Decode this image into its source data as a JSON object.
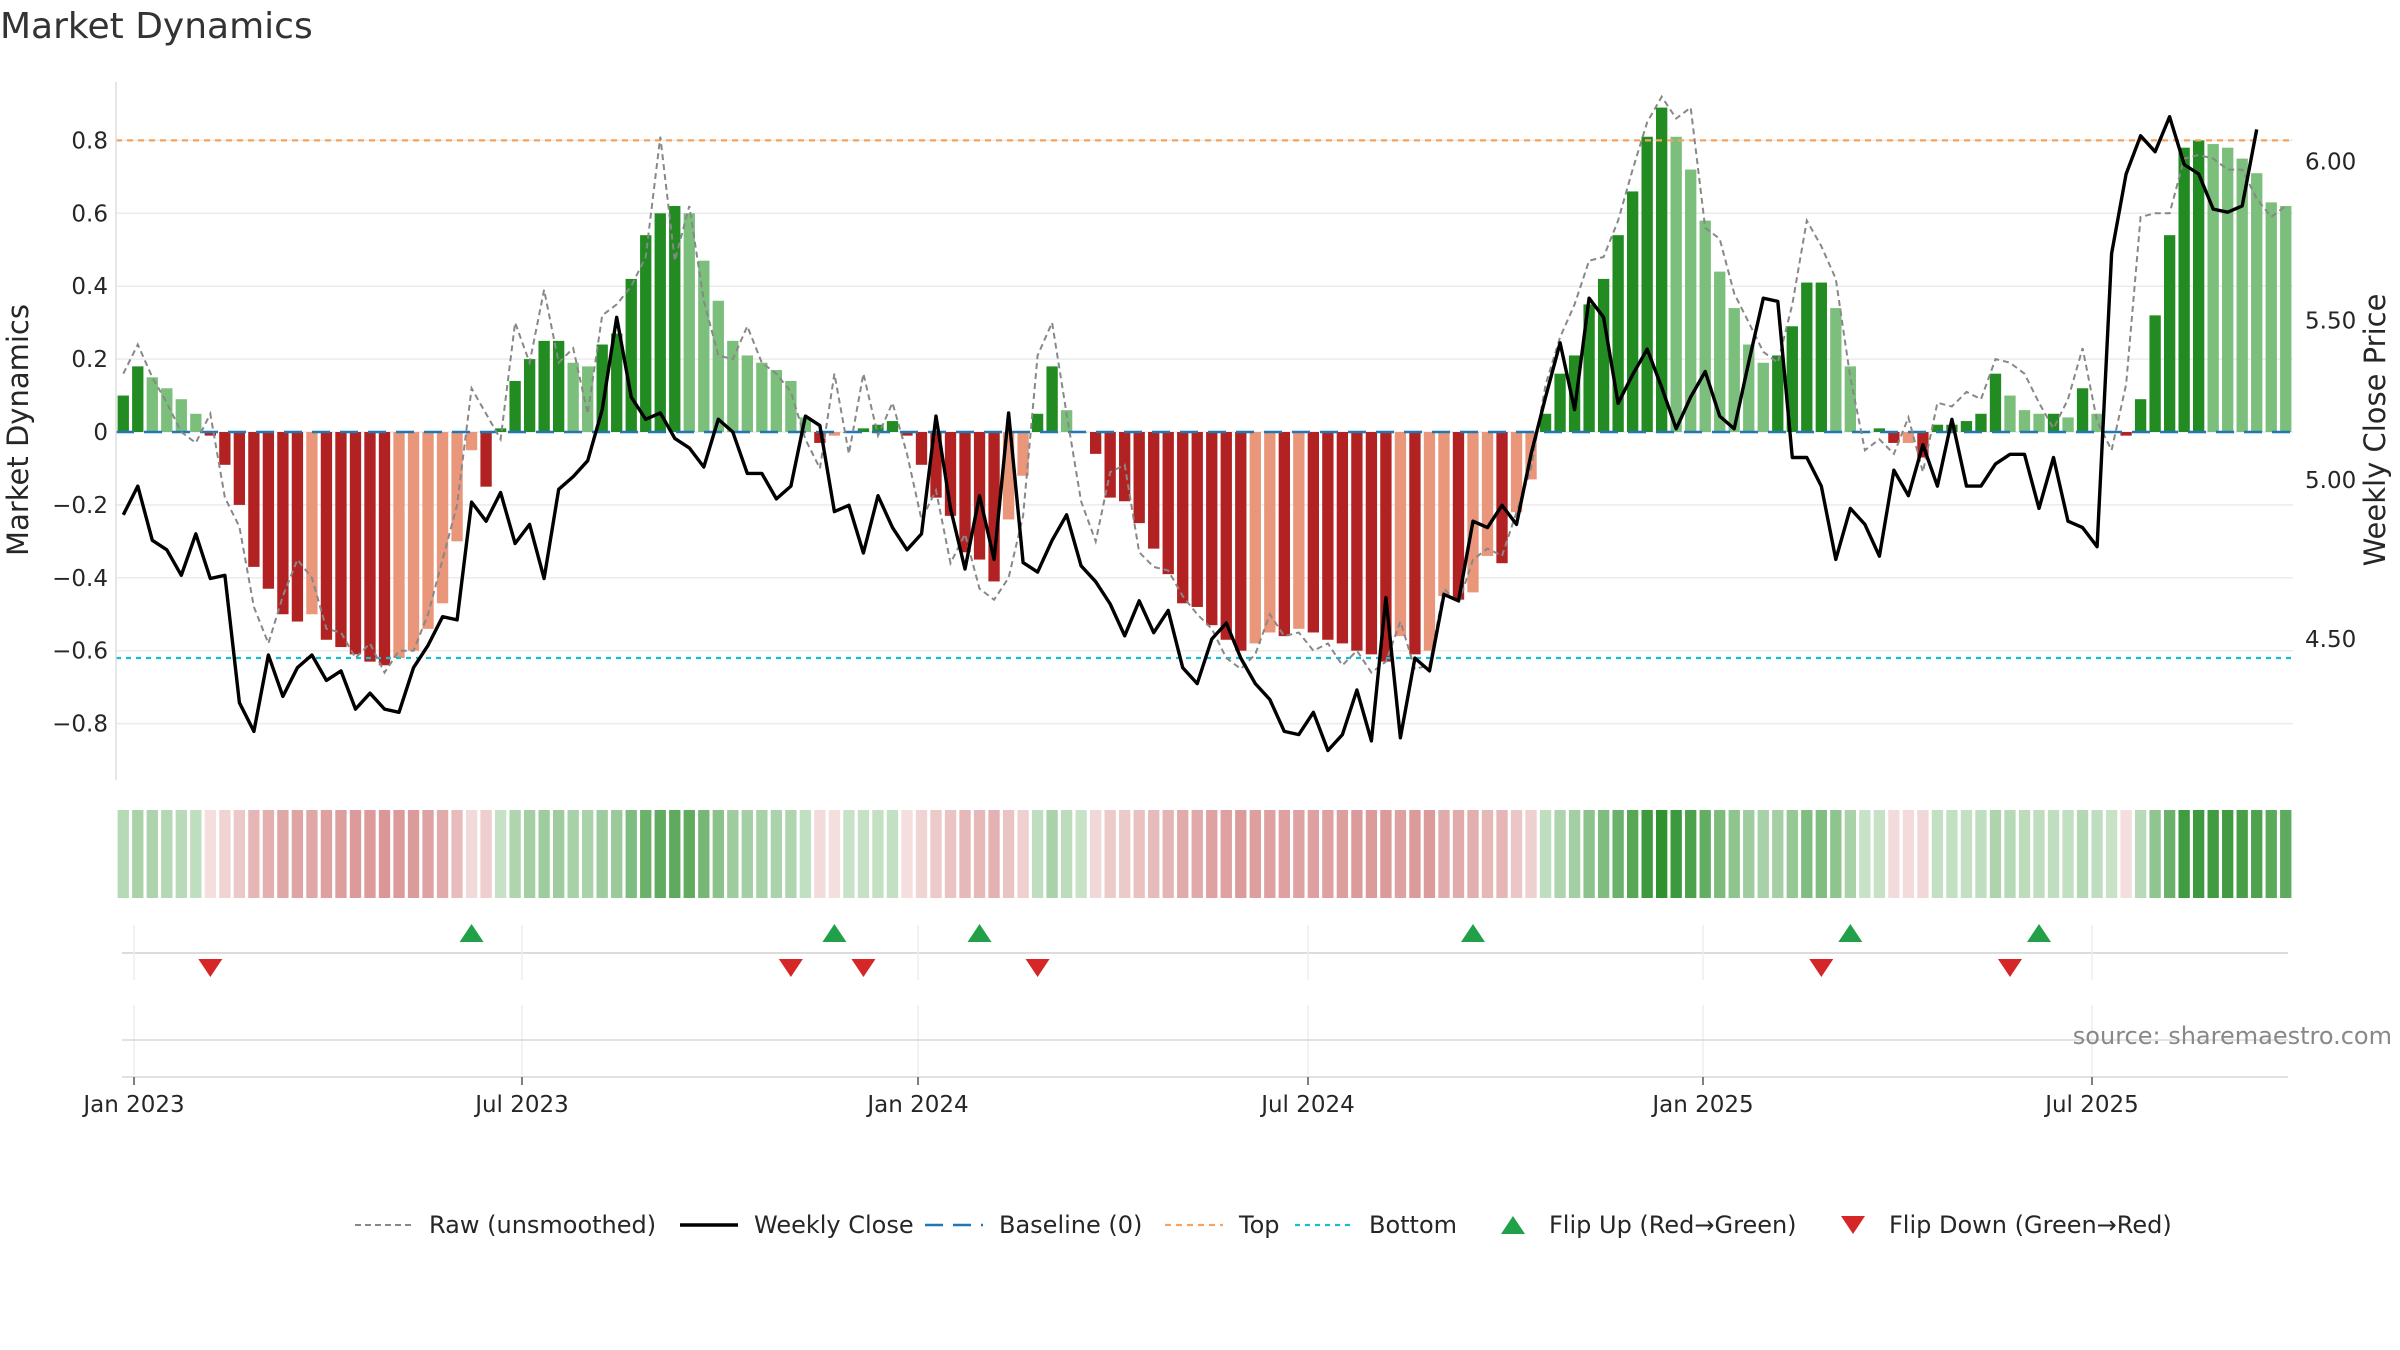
{
  "chart_data": {
    "type": "bar",
    "title": "Market Dynamics",
    "ylabel_left": "Market Dynamics",
    "ylabel_right": "Weekly Close Price",
    "left_ticks": [
      "0.8",
      "0.6",
      "0.4",
      "0.2",
      "0",
      "−0.2",
      "−0.4",
      "−0.6",
      "−0.8"
    ],
    "right_ticks": [
      "6.00",
      "5.50",
      "5.00",
      "4.50"
    ],
    "x_ticks": [
      "Jan 2023",
      "Jul 2023",
      "Jan 2024",
      "Jul 2024",
      "Jan 2025",
      "Jul 2025"
    ],
    "ylim_left": [
      -0.96,
      0.96
    ],
    "ylim_right": [
      4.05,
      6.3
    ],
    "top_line": 0.8,
    "bottom_line": -0.62,
    "baseline": 0,
    "dynamics": [
      0.1,
      0.18,
      0.15,
      0.12,
      0.09,
      0.05,
      -0.01,
      -0.09,
      -0.2,
      -0.37,
      -0.43,
      -0.5,
      -0.52,
      -0.5,
      -0.57,
      -0.59,
      -0.61,
      -0.63,
      -0.64,
      -0.62,
      -0.6,
      -0.54,
      -0.47,
      -0.3,
      -0.05,
      -0.15,
      0.01,
      0.14,
      0.2,
      0.25,
      0.25,
      0.19,
      0.18,
      0.24,
      0.27,
      0.42,
      0.54,
      0.6,
      0.62,
      0.6,
      0.47,
      0.36,
      0.25,
      0.21,
      0.19,
      0.17,
      0.14,
      0.04,
      -0.03,
      -0.01,
      0.0,
      0.01,
      0.02,
      0.03,
      -0.01,
      -0.09,
      -0.18,
      -0.23,
      -0.33,
      -0.35,
      -0.41,
      -0.24,
      -0.12,
      0.05,
      0.18,
      0.06,
      0.0,
      -0.06,
      -0.18,
      -0.19,
      -0.25,
      -0.32,
      -0.39,
      -0.47,
      -0.48,
      -0.53,
      -0.57,
      -0.6,
      -0.58,
      -0.55,
      -0.56,
      -0.54,
      -0.55,
      -0.57,
      -0.58,
      -0.6,
      -0.61,
      -0.63,
      -0.56,
      -0.61,
      -0.6,
      -0.45,
      -0.46,
      -0.44,
      -0.34,
      -0.36,
      -0.22,
      -0.13,
      0.05,
      0.16,
      0.21,
      0.35,
      0.42,
      0.54,
      0.66,
      0.81,
      0.89,
      0.81,
      0.72,
      0.58,
      0.44,
      0.34,
      0.24,
      0.19,
      0.21,
      0.29,
      0.41,
      0.41,
      0.34,
      0.18,
      0.0,
      0.01,
      -0.03,
      -0.03,
      -0.07,
      0.02,
      0.02,
      0.03,
      0.05,
      0.16,
      0.1,
      0.06,
      0.05,
      0.05,
      0.04,
      0.12,
      0.05,
      0.0,
      -0.01,
      0.09,
      0.32,
      0.54,
      0.78,
      0.8,
      0.79,
      0.78,
      0.75,
      0.71,
      0.63,
      0.62
    ],
    "raw": [
      0.16,
      0.24,
      0.15,
      0.08,
      0.0,
      -0.03,
      0.05,
      -0.18,
      -0.26,
      -0.48,
      -0.58,
      -0.45,
      -0.35,
      -0.4,
      -0.54,
      -0.55,
      -0.62,
      -0.58,
      -0.66,
      -0.6,
      -0.6,
      -0.5,
      -0.35,
      -0.2,
      0.12,
      0.05,
      -0.02,
      0.3,
      0.19,
      0.39,
      0.19,
      0.23,
      0.05,
      0.32,
      0.35,
      0.4,
      0.48,
      0.81,
      0.47,
      0.62,
      0.36,
      0.21,
      0.2,
      0.29,
      0.19,
      0.16,
      0.11,
      -0.02,
      -0.1,
      0.16,
      -0.06,
      0.16,
      -0.01,
      0.08,
      -0.06,
      -0.24,
      -0.16,
      -0.36,
      -0.28,
      -0.43,
      -0.46,
      -0.4,
      -0.23,
      0.21,
      0.3,
      0.05,
      -0.19,
      -0.3,
      -0.11,
      -0.09,
      -0.33,
      -0.37,
      -0.38,
      -0.45,
      -0.5,
      -0.54,
      -0.62,
      -0.65,
      -0.61,
      -0.5,
      -0.56,
      -0.55,
      -0.6,
      -0.58,
      -0.64,
      -0.6,
      -0.66,
      -0.63,
      -0.52,
      -0.65,
      -0.64,
      -0.43,
      -0.47,
      -0.35,
      -0.32,
      -0.34,
      -0.22,
      -0.1,
      0.13,
      0.26,
      0.35,
      0.47,
      0.48,
      0.58,
      0.72,
      0.85,
      0.92,
      0.86,
      0.89,
      0.56,
      0.53,
      0.38,
      0.3,
      0.22,
      0.19,
      0.35,
      0.58,
      0.51,
      0.42,
      0.15,
      -0.05,
      -0.02,
      -0.06,
      0.04,
      -0.11,
      0.08,
      0.07,
      0.11,
      0.09,
      0.2,
      0.19,
      0.16,
      0.08,
      0.01,
      0.09,
      0.23,
      0.03,
      -0.05,
      0.13,
      0.59,
      0.6,
      0.6,
      0.75,
      0.76,
      0.75,
      0.72,
      0.72,
      0.64,
      0.59,
      0.62
    ],
    "price": [
      4.89,
      4.98,
      4.81,
      4.78,
      4.7,
      4.83,
      4.69,
      4.7,
      4.3,
      4.21,
      4.45,
      4.32,
      4.41,
      4.45,
      4.37,
      4.4,
      4.28,
      4.33,
      4.28,
      4.27,
      4.41,
      4.48,
      4.57,
      4.56,
      4.93,
      4.87,
      4.96,
      4.8,
      4.86,
      4.69,
      4.97,
      5.01,
      5.06,
      5.22,
      5.51,
      5.26,
      5.19,
      5.21,
      5.13,
      5.1,
      5.04,
      5.19,
      5.15,
      5.02,
      5.02,
      4.94,
      4.98,
      5.2,
      5.17,
      4.9,
      4.92,
      4.77,
      4.95,
      4.85,
      4.78,
      4.83,
      5.2,
      4.91,
      4.72,
      4.95,
      4.75,
      5.21,
      4.74,
      4.71,
      4.81,
      4.89,
      4.73,
      4.68,
      4.61,
      4.51,
      4.62,
      4.52,
      4.59,
      4.41,
      4.36,
      4.5,
      4.55,
      4.44,
      4.36,
      4.31,
      4.21,
      4.2,
      4.27,
      4.15,
      4.2,
      4.34,
      4.18,
      4.63,
      4.19,
      4.44,
      4.4,
      4.64,
      4.62,
      4.87,
      4.85,
      4.92,
      4.86,
      5.08,
      5.26,
      5.43,
      5.22,
      5.57,
      5.51,
      5.24,
      5.33,
      5.41,
      5.29,
      5.16,
      5.26,
      5.34,
      5.2,
      5.16,
      5.37,
      5.57,
      5.56,
      5.07,
      5.07,
      4.98,
      4.75,
      4.91,
      4.86,
      4.76,
      5.03,
      4.95,
      5.11,
      4.98,
      5.19,
      4.98,
      4.98,
      5.05,
      5.08,
      5.08,
      4.91,
      5.07,
      4.87,
      4.85,
      4.79,
      5.71,
      5.96,
      6.08,
      6.03,
      6.14,
      5.99,
      5.96,
      5.85,
      5.84,
      5.86,
      6.1
    ],
    "flip_up": [
      24,
      49,
      59,
      93,
      119,
      132
    ],
    "flip_down": [
      6,
      46,
      51,
      63,
      117,
      130
    ],
    "colors": {
      "strong_green": "#228b22",
      "weak_green": "#7cbf7c",
      "strong_red": "#b22222",
      "weak_red": "#e9967a",
      "top_line": "#f4a460",
      "bottom_line": "#17becf",
      "baseline": "#1f77b4",
      "price_line": "#000000",
      "raw_line": "#888888",
      "flip_up": "#22a049",
      "flip_down": "#d62728"
    },
    "legend": [
      {
        "label": "Raw (unsmoothed)",
        "kind": "raw"
      },
      {
        "label": "Weekly Close",
        "kind": "price"
      },
      {
        "label": "Baseline (0)",
        "kind": "baseline"
      },
      {
        "label": "Top",
        "kind": "top"
      },
      {
        "label": "Bottom",
        "kind": "bottom"
      },
      {
        "label": "Flip Up (Red→Green)",
        "kind": "flipup"
      },
      {
        "label": "Flip Down (Green→Red)",
        "kind": "flipdown"
      }
    ],
    "source": "source: sharemaestro.com"
  }
}
